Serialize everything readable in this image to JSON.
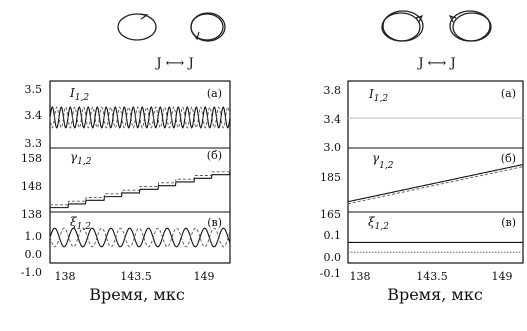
{
  "figure": {
    "panels": [
      {
        "id": "left",
        "mode_label": "J ⟷ J",
        "x_axis": {
          "ticks": [
            "138",
            "143.5",
            "149"
          ],
          "label": "Время, мкс",
          "range": [
            138,
            150
          ]
        },
        "subplots": [
          {
            "variable": "I",
            "subscript": "1,2",
            "panel_tag": "(a)",
            "y_ticks": [
              "3.5",
              "3.4",
              "3.3"
            ],
            "ylim": [
              3.3,
              3.52
            ],
            "curves": [
              {
                "type": "oscillation",
                "mean": 3.4,
                "amplitude": 0.035,
                "period": 0.6,
                "phase": 0,
                "style": "solid"
              },
              {
                "type": "oscillation",
                "mean": 3.4,
                "amplitude": 0.035,
                "period": 0.6,
                "phase": 0.3,
                "style": "dashed"
              }
            ]
          },
          {
            "variable": "γ",
            "subscript": "1,2",
            "panel_tag": "(б)",
            "y_ticks": [
              "158",
              "148",
              "138"
            ],
            "ylim": [
              138,
              160
            ],
            "curves": [
              {
                "type": "staircase",
                "start": 139.2,
                "end": 152.2,
                "steps": 10,
                "style": "solid"
              },
              {
                "type": "staircase",
                "start": 140.2,
                "end": 153.2,
                "steps": 10,
                "style": "dashed"
              }
            ]
          },
          {
            "variable": "ξ",
            "subscript": "1,2",
            "panel_tag": "(в)",
            "y_ticks": [
              "1.0",
              "0.0",
              "-1.0"
            ],
            "ylim": [
              -1.0,
              1.0
            ],
            "curves": [
              {
                "type": "oscillation",
                "mean": 0,
                "amplitude": 0.38,
                "period": 1.25,
                "phase": 0,
                "style": "solid"
              },
              {
                "type": "oscillation",
                "mean": 0,
                "amplitude": 0.38,
                "period": 1.25,
                "phase": 0.62,
                "style": "dashed"
              }
            ]
          }
        ]
      },
      {
        "id": "right",
        "mode_label": "J ⟷ J",
        "x_axis": {
          "ticks": [
            "138",
            "143.5",
            "149"
          ],
          "label": "Время, мкс",
          "range": [
            138,
            150
          ]
        },
        "subplots": [
          {
            "variable": "I",
            "subscript": "1,2",
            "panel_tag": "(a)",
            "y_ticks": [
              "3.8",
              "3.4",
              "3.0"
            ],
            "ylim": [
              3.0,
              3.9
            ],
            "curves": [
              {
                "type": "constant",
                "value": 3.4,
                "style": "light"
              }
            ]
          },
          {
            "variable": "γ",
            "subscript": "1,2",
            "panel_tag": "(б)",
            "y_ticks": [
              "185",
              "165"
            ],
            "ylim": [
              165,
              195
            ],
            "curves": [
              {
                "type": "linear",
                "start": 169.5,
                "end": 187.5,
                "style": "solid"
              },
              {
                "type": "linear",
                "start": 168.5,
                "end": 186.5,
                "style": "dashed"
              }
            ]
          },
          {
            "variable": "ξ",
            "subscript": "1,2",
            "panel_tag": "(в)",
            "y_ticks": [
              "0.1",
              "0.0",
              "-0.1"
            ],
            "ylim": [
              -0.1,
              0.15
            ],
            "curves": [
              {
                "type": "constant",
                "value": 0.0,
                "style": "solid"
              },
              {
                "type": "constant",
                "value": -0.05,
                "style": "dotted"
              }
            ]
          }
        ]
      }
    ]
  }
}
